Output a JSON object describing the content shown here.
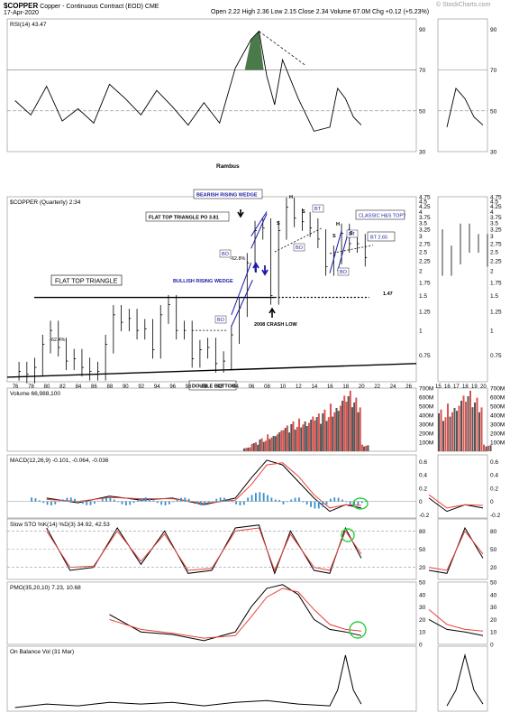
{
  "header": {
    "symbol": "$COPPER",
    "description": "Copper - Continuous Contract (EOD)",
    "exchange": "CME",
    "date": "17-Apr-2020",
    "ohlc": "Open 2.22  High 2.36  Low 2.15  Close 2.34  Volume 67.0M  Chg +0.12 (+5.23%)",
    "watermark": "© StockCharts.com"
  },
  "colors": {
    "up": "#000000",
    "down": "#d9534f",
    "macd_hist": "#3a8fc9",
    "signal": "#e8413b",
    "annotation_blue": "#1a1aa8",
    "green_circle": "#2ecc40",
    "rsi_fill": "#4a7a4a"
  },
  "chart_data": [
    {
      "type": "line",
      "panel": "RSI",
      "title": "RSI(14) 43.47",
      "watermark_text": "Rambus",
      "ylim": [
        30,
        95
      ],
      "y_ticks": [
        90,
        70,
        50,
        30
      ],
      "ref_lines": [
        70,
        50
      ],
      "series": [
        {
          "x": [
            1976,
            1978,
            1980,
            1982,
            1984,
            1986,
            1988,
            1990,
            1992,
            1994,
            1996,
            1998,
            2000,
            2002,
            2004,
            2006,
            2007,
            2008,
            2009,
            2010,
            2012,
            2014,
            2016,
            2017,
            2018,
            2019,
            2020
          ],
          "values": [
            55,
            48,
            62,
            45,
            51,
            44,
            63,
            56,
            48,
            60,
            52,
            43,
            54,
            44,
            71,
            85,
            89,
            67,
            53,
            75,
            56,
            40,
            42,
            61,
            56,
            47,
            43
          ]
        }
      ]
    },
    {
      "type": "bar",
      "panel": "Price",
      "title": "$COPPER (Quarterly) 2:34",
      "scale": "log",
      "ylim": [
        0.55,
        4.75
      ],
      "y_ticks": [
        4.75,
        4.5,
        4.25,
        4.0,
        3.75,
        3.5,
        3.25,
        3.0,
        2.75,
        2.5,
        2.25,
        2.0,
        1.75,
        1.5,
        1.25,
        1.0,
        0.75
      ],
      "x_ticks": [
        76,
        78,
        80,
        82,
        84,
        86,
        88,
        90,
        92,
        94,
        96,
        98,
        "00",
        "02",
        "04",
        "06",
        "08",
        10,
        12,
        14,
        16,
        18,
        20,
        22,
        24,
        26
      ],
      "series": [
        {
          "x": [
            1976,
            1977,
            1978,
            1979,
            1980,
            1981,
            1982,
            1983,
            1984,
            1985,
            1986,
            1987,
            1988,
            1989,
            1990,
            1991,
            1992,
            1993,
            1994,
            1995,
            1996,
            1997,
            1998,
            1999,
            2000,
            2001,
            2002,
            2003,
            2004,
            2005,
            2006,
            2007,
            2008,
            2009,
            2010,
            2011,
            2012,
            2013,
            2014,
            2015,
            2016,
            2017,
            2018,
            2019,
            2020
          ],
          "values": [
            0.62,
            0.6,
            0.65,
            0.85,
            1.0,
            0.82,
            0.7,
            0.72,
            0.65,
            0.62,
            0.62,
            0.85,
            1.2,
            1.1,
            1.15,
            1.0,
            1.02,
            0.8,
            1.2,
            1.35,
            1.0,
            1.0,
            0.72,
            0.8,
            0.82,
            0.68,
            0.7,
            0.95,
            1.3,
            2.2,
            3.2,
            3.3,
            1.5,
            3.2,
            4.2,
            3.7,
            3.55,
            3.3,
            2.9,
            2.1,
            2.4,
            3.1,
            2.75,
            2.75,
            2.34
          ]
        }
      ],
      "annotations": [
        {
          "text": "FLAT TOP TRIANGLE"
        },
        {
          "text": "BULLISH RISING WEDGE"
        },
        {
          "text": "BEARISH RISING WEDGE"
        },
        {
          "text": "FLAT TOP TRIANGLE PO 3.81"
        },
        {
          "text": "CLASSIC H&S TOP?"
        },
        {
          "text": "BT 2.65"
        },
        {
          "text": "2008 CRASH LOW"
        },
        {
          "text": "DOUBLE BOTTOM"
        },
        {
          "text": "-62.4%"
        },
        {
          "text": "-62.8%"
        },
        {
          "text": "1.47"
        },
        {
          "text": "BO"
        },
        {
          "text": "BT"
        },
        {
          "text": "H"
        },
        {
          "text": "S"
        }
      ]
    },
    {
      "type": "bar",
      "panel": "Volume",
      "title": "Volume 66,988,100",
      "ylim": [
        0,
        700
      ],
      "y_ticks": [
        "700M",
        "600M",
        "500M",
        "400M",
        "300M",
        "200M",
        "100M"
      ],
      "series": [
        {
          "x": [
            2005,
            2006,
            2007,
            2008,
            2009,
            2010,
            2011,
            2012,
            2013,
            2014,
            2015,
            2016,
            2017,
            2018,
            2019,
            2020
          ],
          "values": [
            40,
            90,
            130,
            170,
            210,
            260,
            300,
            330,
            350,
            380,
            420,
            480,
            560,
            610,
            540,
            67
          ]
        }
      ]
    },
    {
      "type": "line",
      "panel": "MACD",
      "title": "MACD(12,26,9) -0.101, -0.064, -0.036",
      "ylim": [
        -0.25,
        0.7
      ],
      "y_ticks": [
        0.6,
        0.4,
        0.2,
        0.0,
        -0.2
      ],
      "series": [
        {
          "name": "MACD",
          "x": [
            1980,
            1984,
            1988,
            1992,
            1996,
            2000,
            2004,
            2006,
            2008,
            2010,
            2012,
            2014,
            2016,
            2018,
            2020
          ],
          "values": [
            0.05,
            -0.02,
            0.08,
            0.02,
            0.05,
            -0.05,
            0.05,
            0.35,
            0.62,
            0.55,
            0.3,
            0.05,
            -0.15,
            -0.05,
            -0.1
          ]
        },
        {
          "name": "Signal",
          "x": [
            1980,
            1984,
            1988,
            1992,
            1996,
            2000,
            2004,
            2006,
            2008,
            2010,
            2012,
            2014,
            2016,
            2018,
            2020
          ],
          "values": [
            0.03,
            0.0,
            0.06,
            0.04,
            0.04,
            -0.03,
            0.02,
            0.25,
            0.55,
            0.58,
            0.38,
            0.1,
            -0.1,
            -0.05,
            -0.06
          ]
        }
      ]
    },
    {
      "type": "line",
      "panel": "Slow STO",
      "title": "Slow STO %K(14) %D(3) 34.92, 42.53",
      "ylim": [
        0,
        100
      ],
      "y_ticks": [
        80,
        50,
        20
      ],
      "series": [
        {
          "name": "%K",
          "x": [
            1980,
            1983,
            1986,
            1989,
            1992,
            1995,
            1998,
            2001,
            2004,
            2007,
            2009,
            2011,
            2014,
            2016,
            2018,
            2020
          ],
          "values": [
            85,
            15,
            20,
            85,
            25,
            80,
            10,
            15,
            85,
            90,
            10,
            80,
            15,
            10,
            85,
            35
          ]
        },
        {
          "name": "%D",
          "x": [
            1980,
            1983,
            1986,
            1989,
            1992,
            1995,
            1998,
            2001,
            2004,
            2007,
            2009,
            2011,
            2014,
            2016,
            2018,
            2020
          ],
          "values": [
            80,
            20,
            22,
            80,
            30,
            75,
            15,
            18,
            80,
            85,
            15,
            75,
            20,
            15,
            80,
            42
          ]
        }
      ]
    },
    {
      "type": "line",
      "panel": "PMO",
      "title": "PMO(35,20,10) 7.23, 10.68",
      "ylim": [
        0,
        50
      ],
      "y_ticks": [
        50,
        40,
        30,
        20,
        10,
        0
      ],
      "series": [
        {
          "name": "PMO",
          "x": [
            1988,
            1992,
            1996,
            2000,
            2004,
            2006,
            2008,
            2010,
            2012,
            2014,
            2016,
            2018,
            2020
          ],
          "values": [
            24,
            10,
            8,
            3,
            10,
            30,
            45,
            48,
            40,
            20,
            12,
            10,
            7
          ]
        },
        {
          "name": "Signal",
          "x": [
            1988,
            1992,
            1996,
            2000,
            2004,
            2006,
            2008,
            2010,
            2012,
            2014,
            2016,
            2018,
            2020
          ],
          "values": [
            20,
            12,
            9,
            5,
            7,
            22,
            38,
            45,
            42,
            28,
            16,
            12,
            10.7
          ]
        }
      ]
    },
    {
      "type": "line",
      "panel": "OBV",
      "title": "On Balance Vol (31 Mar)",
      "series": [
        {
          "x": [
            1976,
            1980,
            1984,
            1988,
            1992,
            1996,
            2000,
            2004,
            2008,
            2012,
            2016,
            2017,
            2018,
            2019,
            2020
          ],
          "values": [
            1,
            1.2,
            1.1,
            1.3,
            1.2,
            1.3,
            1.1,
            1.3,
            1.4,
            1.2,
            1.1,
            2.0,
            4.0,
            2.0,
            1.2
          ]
        }
      ]
    }
  ]
}
